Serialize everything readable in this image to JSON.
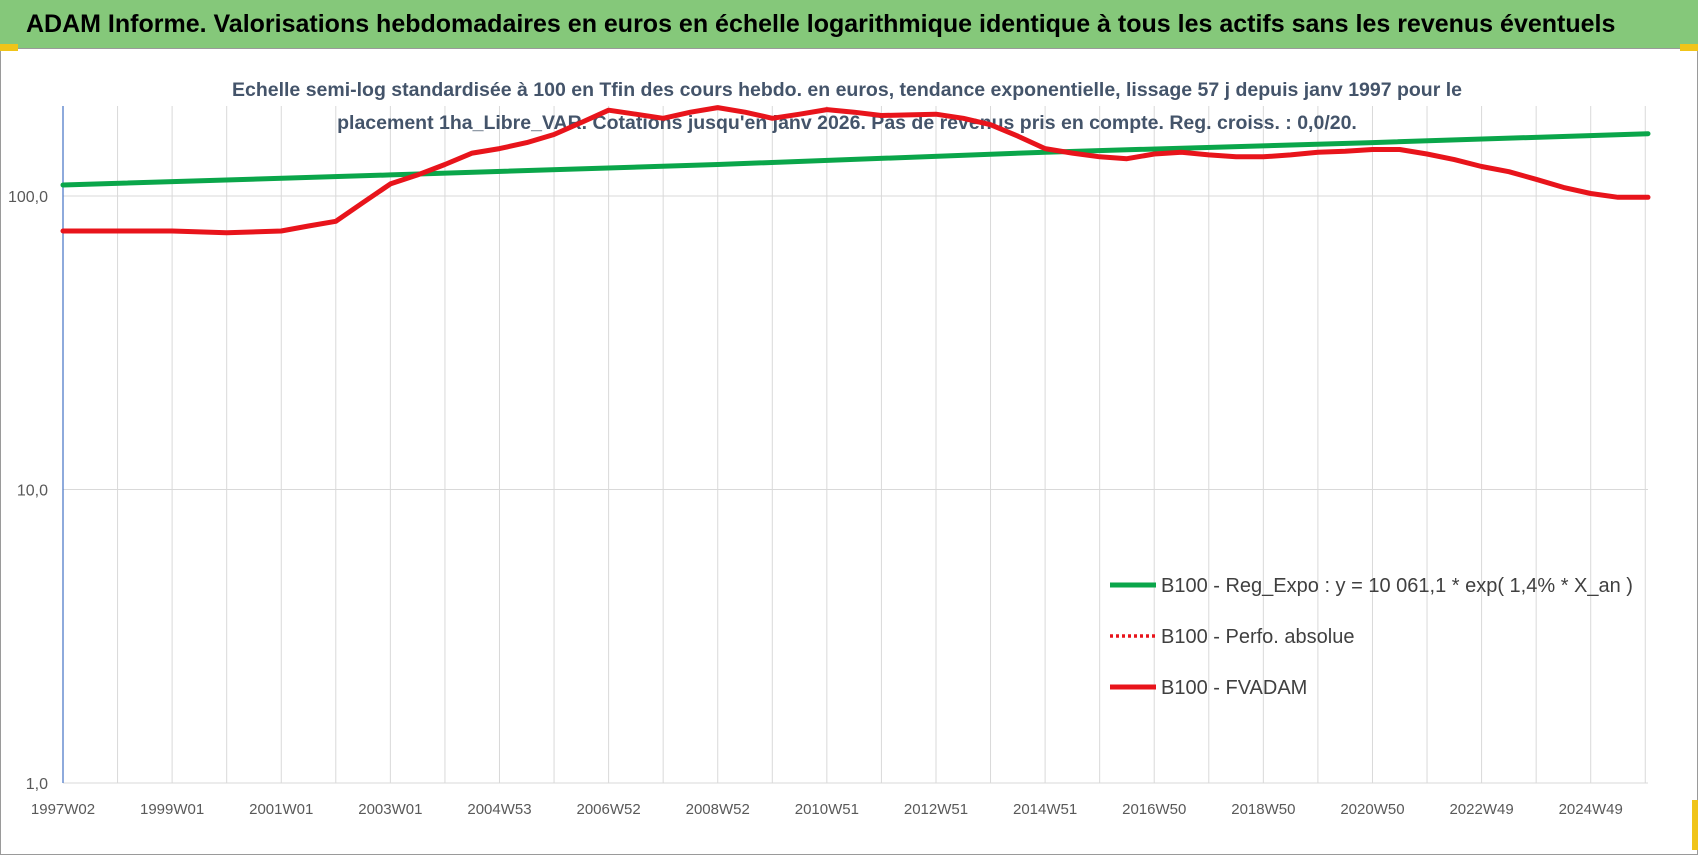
{
  "header": {
    "title": "ADAM Informe. Valorisations hebdomadaires en euros en échelle logarithmique identique à tous les actifs sans les revenus éventuels"
  },
  "colors": {
    "banner": "#85c87a",
    "trend": "#0aa64a",
    "series": "#e8141b",
    "grid": "#d9d9d9",
    "accent": "#f0c419"
  },
  "chart_data": {
    "type": "line",
    "title_lines": [
      "Echelle semi-log standardisée à 100 en Tfin des cours hebdo. en euros, tendance exponentielle, lissage 57 j depuis janv 1997 pour le",
      "placement 1ha_Libre_VAR. Cotations jusqu'en janv 2026. Pas de revenus pris en compte. Reg. croiss. : 0,0/20."
    ],
    "y_scale": "log",
    "ylim": [
      1,
      200
    ],
    "y_ticks": [
      {
        "value": 1,
        "label": "1,0"
      },
      {
        "value": 10,
        "label": "10,0"
      },
      {
        "value": 100,
        "label": "100,0"
      }
    ],
    "xlim": [
      1997.0,
      2026.05
    ],
    "x_ticks": [
      {
        "x": 1997.0,
        "label": "1997W02"
      },
      {
        "x": 1999.0,
        "label": "1999W01"
      },
      {
        "x": 2001.0,
        "label": "2001W01"
      },
      {
        "x": 2003.0,
        "label": "2003W01"
      },
      {
        "x": 2005.0,
        "label": "2004W53"
      },
      {
        "x": 2007.0,
        "label": "2006W52"
      },
      {
        "x": 2009.0,
        "label": "2008W52"
      },
      {
        "x": 2011.0,
        "label": "2010W51"
      },
      {
        "x": 2013.0,
        "label": "2012W51"
      },
      {
        "x": 2015.0,
        "label": "2014W51"
      },
      {
        "x": 2017.0,
        "label": "2016W50"
      },
      {
        "x": 2019.0,
        "label": "2018W50"
      },
      {
        "x": 2021.0,
        "label": "2020W50"
      },
      {
        "x": 2023.0,
        "label": "2022W49"
      },
      {
        "x": 2025.0,
        "label": "2024W49"
      }
    ],
    "grid": true,
    "legend_position": "lower-right",
    "series": [
      {
        "name": "B100 - Reg_Expo : y = 10 061,1 * exp( 1,4% *  X_an )",
        "style": "solid",
        "color": "#0aa64a",
        "points": [
          [
            1997.0,
            109
          ],
          [
            2003.0,
            118
          ],
          [
            2009.0,
            128
          ],
          [
            2015.0,
            141
          ],
          [
            2021.0,
            152
          ],
          [
            2026.05,
            163
          ]
        ]
      },
      {
        "name": "B100 - Perfo. absolue",
        "style": "dotted",
        "color": "#e8141b",
        "points": []
      },
      {
        "name": "B100 - FVADAM",
        "style": "solid",
        "color": "#e8141b",
        "points": [
          [
            1997.0,
            76
          ],
          [
            1998.0,
            76
          ],
          [
            1999.0,
            76
          ],
          [
            2000.0,
            75
          ],
          [
            2001.0,
            76
          ],
          [
            2001.5,
            79
          ],
          [
            2002.0,
            82
          ],
          [
            2002.5,
            95
          ],
          [
            2003.0,
            110
          ],
          [
            2003.5,
            118
          ],
          [
            2004.0,
            128
          ],
          [
            2004.5,
            140
          ],
          [
            2005.0,
            145
          ],
          [
            2005.5,
            152
          ],
          [
            2006.0,
            162
          ],
          [
            2006.5,
            178
          ],
          [
            2007.0,
            196
          ],
          [
            2007.5,
            190
          ],
          [
            2008.0,
            184
          ],
          [
            2008.5,
            193
          ],
          [
            2009.0,
            200
          ],
          [
            2009.5,
            193
          ],
          [
            2010.0,
            184
          ],
          [
            2010.5,
            190
          ],
          [
            2011.0,
            197
          ],
          [
            2011.5,
            193
          ],
          [
            2012.0,
            188
          ],
          [
            2012.5,
            189
          ],
          [
            2013.0,
            190
          ],
          [
            2013.5,
            184
          ],
          [
            2014.0,
            175
          ],
          [
            2014.5,
            160
          ],
          [
            2015.0,
            145
          ],
          [
            2015.5,
            140
          ],
          [
            2016.0,
            136
          ],
          [
            2016.5,
            134
          ],
          [
            2017.0,
            139
          ],
          [
            2017.5,
            141
          ],
          [
            2018.0,
            138
          ],
          [
            2018.5,
            136
          ],
          [
            2019.0,
            136
          ],
          [
            2019.5,
            138
          ],
          [
            2020.0,
            141
          ],
          [
            2020.5,
            142
          ],
          [
            2021.0,
            144
          ],
          [
            2021.5,
            144
          ],
          [
            2022.0,
            139
          ],
          [
            2022.5,
            133
          ],
          [
            2023.0,
            126
          ],
          [
            2023.5,
            121
          ],
          [
            2024.0,
            114
          ],
          [
            2024.5,
            107
          ],
          [
            2025.0,
            102
          ],
          [
            2025.5,
            99
          ],
          [
            2026.05,
            99
          ]
        ]
      }
    ]
  }
}
